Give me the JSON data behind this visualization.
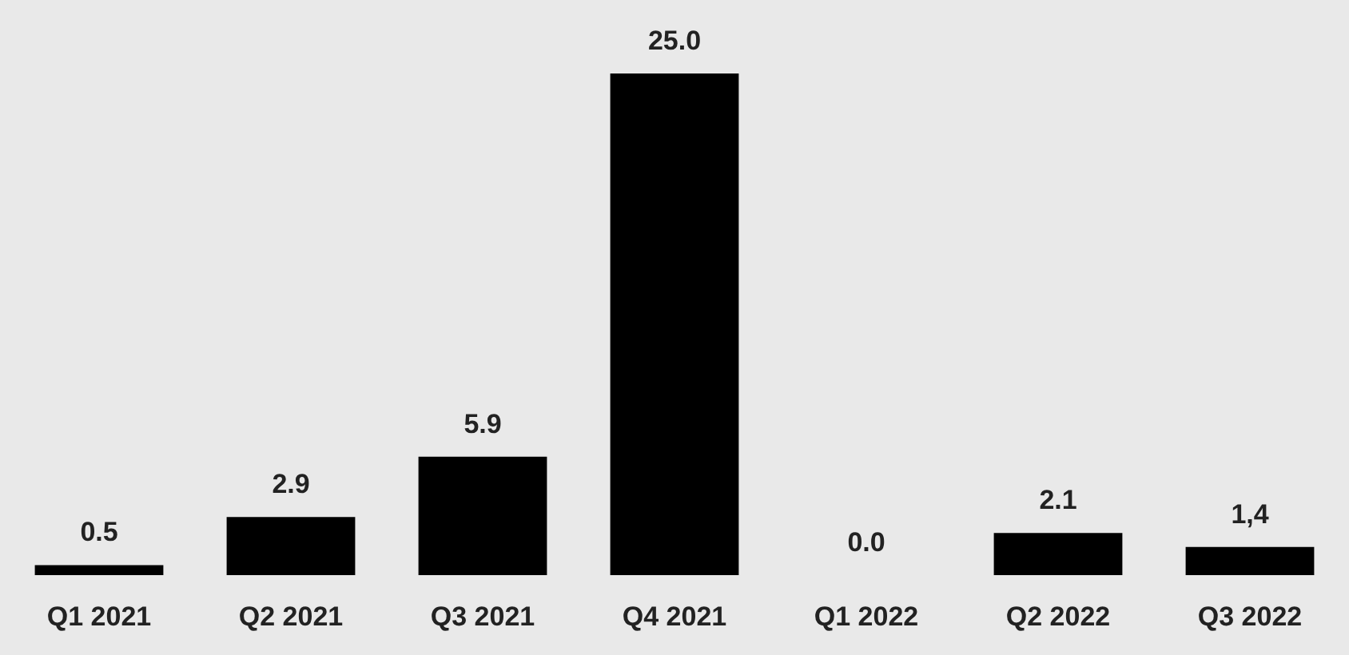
{
  "chart_data": {
    "type": "bar",
    "categories": [
      "Q1 2021",
      "Q2 2021",
      "Q3 2021",
      "Q4 2021",
      "Q1 2022",
      "Q2 2022",
      "Q3 2022"
    ],
    "values": [
      0.5,
      2.9,
      5.9,
      25.0,
      0.0,
      2.1,
      1.4
    ],
    "value_labels": [
      "0.5",
      "2.9",
      "5.9",
      "25.0",
      "0.0",
      "2.1",
      "1,4"
    ],
    "color": "#000000"
  }
}
